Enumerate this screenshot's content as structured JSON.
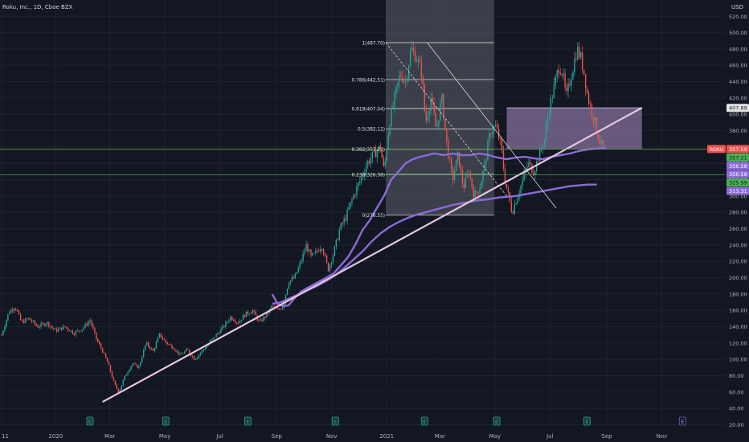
{
  "header": {
    "symbol_title": "Roku, Inc., 1D, Cboe BZX",
    "currency": "USD"
  },
  "colors": {
    "background": "#131722",
    "grid": "#1e222d",
    "up": "#26a69a",
    "down": "#ef5350",
    "ma": "#8c6bd9",
    "trendline": "#e6c7de",
    "fib_box": "#5d606b",
    "resistance_box": "#9e86b8",
    "green_level": "#4caf50",
    "price_label": "#ef5350"
  },
  "chart_data": {
    "type": "candlestick",
    "ylim": [
      20,
      545
    ],
    "y_ticks": [
      20,
      40,
      60,
      80,
      100,
      120,
      140,
      160,
      180,
      200,
      220,
      240,
      260,
      280,
      300,
      320,
      340,
      360,
      380,
      400,
      420,
      440,
      460,
      480,
      500,
      520
    ],
    "x_range_days": [
      0,
      710
    ],
    "x_ticks": [
      {
        "label": "11",
        "day": 0
      },
      {
        "label": "2020",
        "day": 60
      },
      {
        "label": "Mar",
        "day": 120
      },
      {
        "label": "May",
        "day": 181
      },
      {
        "label": "Jul",
        "day": 242
      },
      {
        "label": "Sep",
        "day": 305
      },
      {
        "label": "Nov",
        "day": 366
      },
      {
        "label": "2021",
        "day": 427
      },
      {
        "label": "Mar",
        "day": 486
      },
      {
        "label": "May",
        "day": 547
      },
      {
        "label": "Jul",
        "day": 608
      },
      {
        "label": "Sep",
        "day": 671
      },
      {
        "label": "Nov",
        "day": 732
      }
    ],
    "price_path": [
      [
        0,
        130
      ],
      [
        8,
        158
      ],
      [
        15,
        165
      ],
      [
        22,
        145
      ],
      [
        30,
        150
      ],
      [
        40,
        140
      ],
      [
        50,
        145
      ],
      [
        60,
        135
      ],
      [
        70,
        140
      ],
      [
        80,
        132
      ],
      [
        90,
        138
      ],
      [
        98,
        148
      ],
      [
        105,
        125
      ],
      [
        112,
        110
      ],
      [
        118,
        95
      ],
      [
        125,
        70
      ],
      [
        130,
        60
      ],
      [
        137,
        80
      ],
      [
        145,
        95
      ],
      [
        152,
        90
      ],
      [
        160,
        120
      ],
      [
        168,
        110
      ],
      [
        175,
        130
      ],
      [
        183,
        120
      ],
      [
        190,
        115
      ],
      [
        198,
        105
      ],
      [
        206,
        112
      ],
      [
        214,
        100
      ],
      [
        222,
        110
      ],
      [
        230,
        120
      ],
      [
        238,
        130
      ],
      [
        246,
        140
      ],
      [
        254,
        152
      ],
      [
        262,
        145
      ],
      [
        270,
        155
      ],
      [
        278,
        160
      ],
      [
        286,
        145
      ],
      [
        294,
        155
      ],
      [
        300,
        165
      ],
      [
        306,
        160
      ],
      [
        312,
        165
      ],
      [
        318,
        195
      ],
      [
        325,
        200
      ],
      [
        332,
        220
      ],
      [
        338,
        240
      ],
      [
        343,
        225
      ],
      [
        348,
        230
      ],
      [
        355,
        240
      ],
      [
        362,
        210
      ],
      [
        368,
        230
      ],
      [
        375,
        260
      ],
      [
        382,
        275
      ],
      [
        390,
        300
      ],
      [
        398,
        320
      ],
      [
        405,
        340
      ],
      [
        412,
        350
      ],
      [
        420,
        360
      ],
      [
        424,
        330
      ],
      [
        430,
        390
      ],
      [
        436,
        420
      ],
      [
        442,
        450
      ],
      [
        448,
        440
      ],
      [
        454,
        480
      ],
      [
        460,
        470
      ],
      [
        466,
        450
      ],
      [
        470,
        390
      ],
      [
        476,
        420
      ],
      [
        482,
        380
      ],
      [
        488,
        420
      ],
      [
        494,
        360
      ],
      [
        500,
        320
      ],
      [
        506,
        350
      ],
      [
        512,
        310
      ],
      [
        518,
        330
      ],
      [
        524,
        300
      ],
      [
        530,
        310
      ],
      [
        536,
        340
      ],
      [
        542,
        380
      ],
      [
        548,
        385
      ],
      [
        554,
        360
      ],
      [
        558,
        320
      ],
      [
        562,
        300
      ],
      [
        566,
        280
      ],
      [
        572,
        300
      ],
      [
        578,
        320
      ],
      [
        584,
        340
      ],
      [
        590,
        330
      ],
      [
        596,
        350
      ],
      [
        602,
        370
      ],
      [
        606,
        400
      ],
      [
        610,
        420
      ],
      [
        614,
        440
      ],
      [
        618,
        460
      ],
      [
        622,
        450
      ],
      [
        626,
        420
      ],
      [
        630,
        440
      ],
      [
        634,
        460
      ],
      [
        638,
        480
      ],
      [
        642,
        470
      ],
      [
        646,
        450
      ],
      [
        650,
        420
      ],
      [
        654,
        405
      ],
      [
        658,
        390
      ],
      [
        662,
        370
      ],
      [
        666,
        360
      ],
      [
        670,
        358
      ]
    ],
    "series": [
      {
        "kind": "moving-average",
        "values": [
          [
            300,
            180
          ],
          [
            306,
            168
          ],
          [
            312,
            165
          ],
          [
            318,
            166
          ],
          [
            325,
            175
          ],
          [
            332,
            183
          ],
          [
            340,
            188
          ],
          [
            350,
            194
          ],
          [
            360,
            200
          ],
          [
            368,
            205
          ],
          [
            376,
            215
          ],
          [
            384,
            225
          ],
          [
            392,
            240
          ],
          [
            400,
            258
          ],
          [
            408,
            270
          ],
          [
            416,
            285
          ],
          [
            424,
            300
          ],
          [
            432,
            320
          ],
          [
            440,
            330
          ],
          [
            448,
            340
          ],
          [
            456,
            345
          ],
          [
            464,
            348
          ],
          [
            472,
            350
          ],
          [
            480,
            352
          ],
          [
            490,
            350
          ],
          [
            500,
            352
          ],
          [
            510,
            350
          ],
          [
            520,
            350
          ],
          [
            530,
            352
          ],
          [
            540,
            350
          ],
          [
            550,
            347
          ],
          [
            560,
            345
          ],
          [
            570,
            347
          ],
          [
            580,
            348
          ],
          [
            590,
            346
          ],
          [
            600,
            345
          ],
          [
            610,
            348
          ],
          [
            620,
            350
          ],
          [
            630,
            352
          ],
          [
            640,
            355
          ],
          [
            650,
            357
          ],
          [
            660,
            358
          ],
          [
            670,
            359
          ]
        ]
      },
      {
        "kind": "moving-average",
        "values": [
          [
            300,
            168
          ],
          [
            310,
            170
          ],
          [
            320,
            175
          ],
          [
            330,
            180
          ],
          [
            340,
            185
          ],
          [
            350,
            190
          ],
          [
            360,
            196
          ],
          [
            370,
            203
          ],
          [
            380,
            212
          ],
          [
            390,
            222
          ],
          [
            400,
            232
          ],
          [
            410,
            244
          ],
          [
            420,
            254
          ],
          [
            430,
            262
          ],
          [
            440,
            268
          ],
          [
            450,
            273
          ],
          [
            460,
            277
          ],
          [
            470,
            280
          ],
          [
            480,
            283
          ],
          [
            490,
            286
          ],
          [
            500,
            289
          ],
          [
            510,
            291
          ],
          [
            520,
            293
          ],
          [
            530,
            295
          ],
          [
            540,
            296
          ],
          [
            550,
            298
          ],
          [
            560,
            299
          ],
          [
            570,
            300
          ],
          [
            580,
            302
          ],
          [
            590,
            304
          ],
          [
            600,
            306
          ],
          [
            610,
            308
          ],
          [
            620,
            310
          ],
          [
            630,
            312
          ],
          [
            640,
            313
          ],
          [
            650,
            314
          ],
          [
            660,
            314
          ]
        ]
      }
    ],
    "fibonacci": {
      "levels": [
        {
          "label": "1(487.70)",
          "ratio": 1,
          "price": 487.7
        },
        {
          "label": "0.786(442.51)",
          "ratio": 0.786,
          "price": 442.51
        },
        {
          "label": "0.618(407.04)",
          "ratio": 0.618,
          "price": 407.04
        },
        {
          "label": "0.5(382.12)",
          "ratio": 0.5,
          "price": 382.12
        },
        {
          "label": "0.382(357.21)",
          "ratio": 0.382,
          "price": 357.21
        },
        {
          "label": "0.236(326.38)",
          "ratio": 0.236,
          "price": 326.38
        },
        {
          "label": "0(276.55)",
          "ratio": 0,
          "price": 276.55
        }
      ],
      "day_start": 426,
      "day_end": 546,
      "zone_top": 545
    },
    "resistance_zone": {
      "day_start": 560,
      "day_end": 710,
      "price_top": 407.89,
      "price_bottom": 357.59
    },
    "trendline": {
      "start": [
        112,
        48
      ],
      "end": [
        710,
        408
      ]
    },
    "dashed_line": {
      "start": [
        426,
        487.7
      ],
      "end": [
        560,
        300
      ]
    },
    "solid_diagonal": {
      "start": [
        472,
        487.7
      ],
      "end": [
        615,
        285
      ]
    },
    "horizontal_levels": [
      {
        "price": 357.59,
        "kind": "current"
      },
      {
        "price": 357.21,
        "kind": "green"
      },
      {
        "price": 325.99,
        "kind": "green"
      }
    ],
    "price_labels": [
      {
        "text": "407.89",
        "price": 407.89,
        "bg": "#e6e6e6",
        "fg": "#131722"
      },
      {
        "text": "ROKU",
        "price": 357.59,
        "bg": "#ef5350",
        "fg": "#ffffff",
        "side": "left"
      },
      {
        "text": "357.59",
        "price": 357.59,
        "bg": "#ef5350",
        "fg": "#ffffff"
      },
      {
        "text": "357.21",
        "price": 347.2,
        "bg": "#4caf50",
        "fg": "#131722"
      },
      {
        "text": "356.58",
        "price": 337.0,
        "bg": "#8c6bd9",
        "fg": "#ffffff"
      },
      {
        "text": "356.58",
        "price": 326.8,
        "bg": "#8c6bd9",
        "fg": "#ffffff"
      },
      {
        "text": "325.99",
        "price": 316.5,
        "bg": "#4caf50",
        "fg": "#131722"
      },
      {
        "text": "313.31",
        "price": 306.2,
        "bg": "#8c6bd9",
        "fg": "#ffffff"
      }
    ],
    "earnings_markers": [
      {
        "label": "E",
        "day": 98
      },
      {
        "label": "E",
        "day": 182
      },
      {
        "label": "E",
        "day": 273
      },
      {
        "label": "E",
        "day": 370
      },
      {
        "label": "E",
        "day": 469
      },
      {
        "label": "E",
        "day": 549
      },
      {
        "label": "E",
        "day": 649
      },
      {
        "label": "E",
        "day": 755
      }
    ]
  }
}
